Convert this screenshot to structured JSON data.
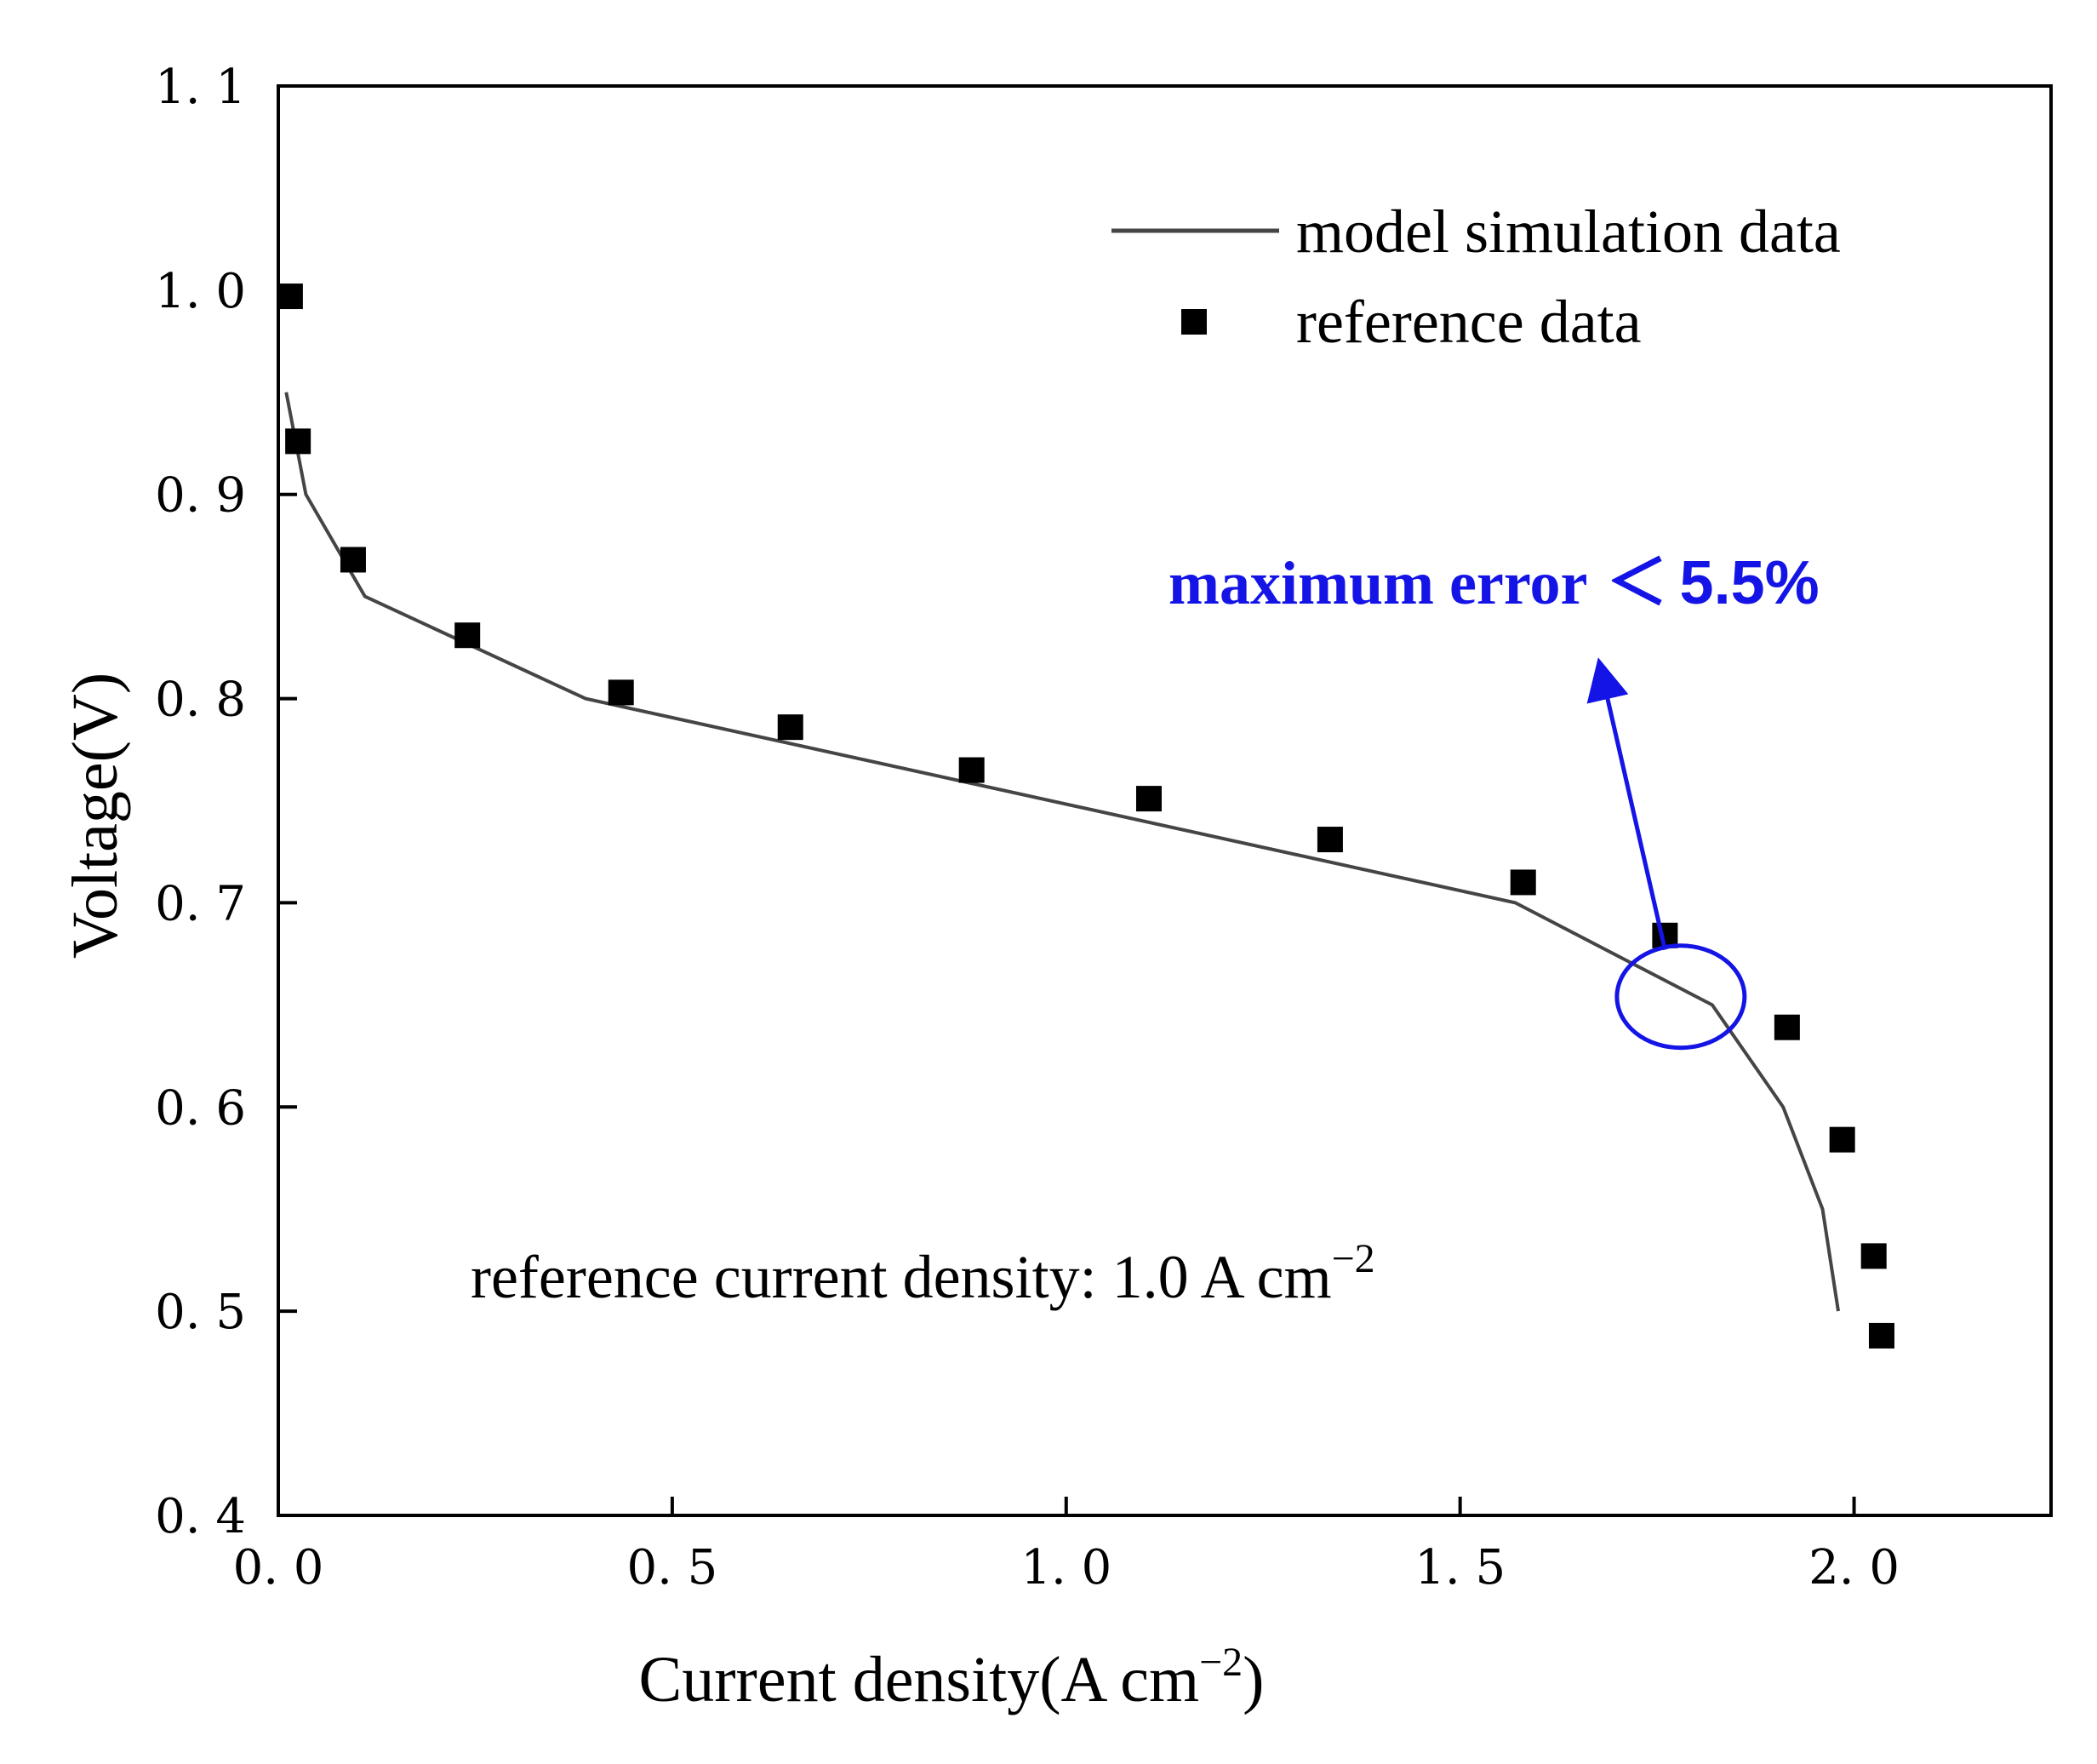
{
  "chart_data": {
    "type": "line+scatter",
    "xlabel": "Current density(A cm",
    "xlabel_sup": "−2",
    "xlabel_close": ")",
    "ylabel": "Voltage(V)",
    "xlim": [
      0.0,
      2.25
    ],
    "ylim": [
      0.4,
      1.1
    ],
    "x_ticks": [
      0.0,
      0.5,
      1.0,
      1.5,
      2.0
    ],
    "x_tick_labels": [
      "0. 0",
      "0. 5",
      "1. 0",
      "1. 5",
      "2. 0"
    ],
    "y_ticks": [
      0.4,
      0.5,
      0.6,
      0.7,
      0.8,
      0.9,
      1.0,
      1.1
    ],
    "y_tick_labels": [
      "0. 4",
      "0. 5",
      "0. 6",
      "0. 7",
      "0. 8",
      "0. 9",
      "1. 0",
      "1. 1"
    ],
    "series": [
      {
        "name": "model simulation data",
        "kind": "line",
        "color": "#454545",
        "x": [
          0.01,
          0.035,
          0.11,
          0.39,
          1.57,
          1.82,
          1.91,
          1.96,
          1.98
        ],
        "y": [
          0.95,
          0.9,
          0.85,
          0.8,
          0.7,
          0.65,
          0.6,
          0.55,
          0.5
        ]
      },
      {
        "name": "reference data",
        "kind": "scatter",
        "marker": "square",
        "color": "#000000",
        "x": [
          0.015,
          0.025,
          0.095,
          0.24,
          0.435,
          0.65,
          0.88,
          1.105,
          1.335,
          1.58,
          1.76,
          1.915,
          1.985,
          2.025,
          2.035
        ],
        "y": [
          0.997,
          0.926,
          0.868,
          0.831,
          0.803,
          0.786,
          0.765,
          0.751,
          0.731,
          0.71,
          0.684,
          0.639,
          0.584,
          0.527,
          0.488
        ]
      }
    ],
    "legend": {
      "position": "top-right",
      "entries": [
        "model simulation data",
        "reference data"
      ]
    },
    "annotations": {
      "reference_text": "reference current density: 1.0 A cm",
      "reference_sup": "−2",
      "error_label": "maximum error",
      "error_symbol": "＜",
      "error_value": "5.5%",
      "error_color": "#1414e6",
      "circle_center": [
        1.78,
        0.654
      ],
      "arrow_tail": [
        1.76,
        0.677
      ],
      "arrow_head": [
        1.68,
        0.812
      ]
    }
  }
}
